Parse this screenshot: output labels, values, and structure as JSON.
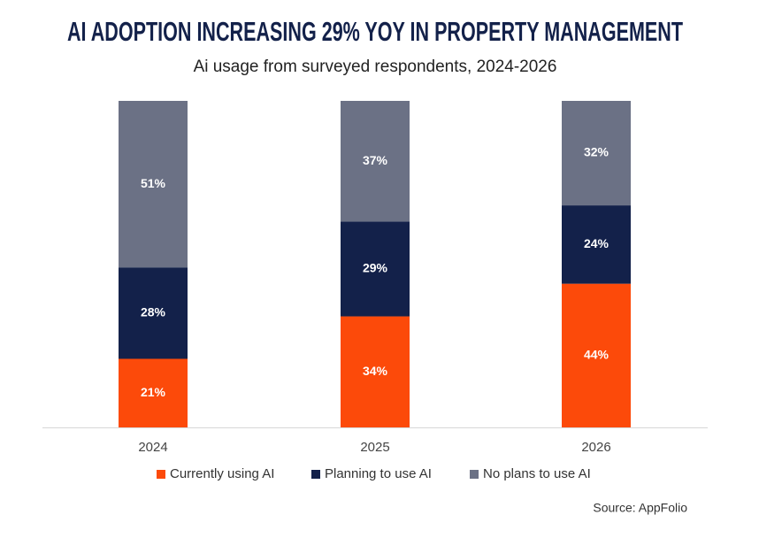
{
  "chart_data": {
    "type": "stacked-bar",
    "title": "AI ADOPTION INCREASING 29% YOY IN PROPERTY MANAGEMENT",
    "subtitle": "Ai usage from surveyed respondents, 2024-2026",
    "source": "Source: AppFolio",
    "categories": [
      "2024",
      "2025",
      "2026"
    ],
    "series": [
      {
        "name": "Currently using AI",
        "color": "#fc4a0a",
        "values": [
          21,
          34,
          44
        ],
        "value_labels": [
          "21%",
          "34%",
          "44%"
        ]
      },
      {
        "name": "Planning to use AI",
        "color": "#13214a",
        "values": [
          28,
          29,
          24
        ],
        "value_labels": [
          "28%",
          "29%",
          "24%"
        ]
      },
      {
        "name": "No plans to use AI",
        "color": "#6b7185",
        "values": [
          51,
          37,
          32
        ],
        "value_labels": [
          "51%",
          "37%",
          "32%"
        ]
      }
    ],
    "ylim": [
      0,
      100
    ]
  }
}
